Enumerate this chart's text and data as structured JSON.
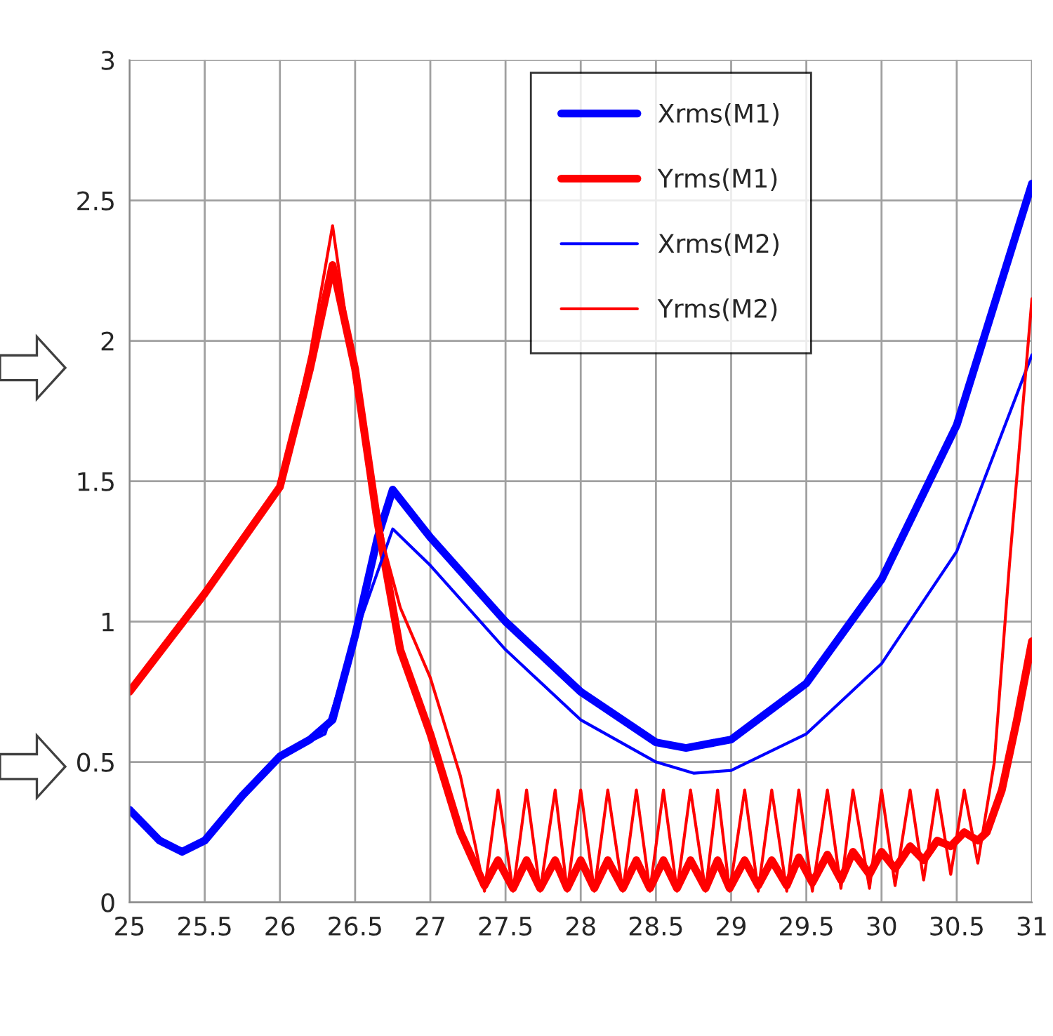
{
  "chart_data": {
    "type": "line",
    "xlim": [
      25,
      31
    ],
    "ylim": [
      0,
      3
    ],
    "xticks": [
      25,
      25.5,
      26,
      26.5,
      27,
      27.5,
      28,
      28.5,
      29,
      29.5,
      30,
      30.5,
      31
    ],
    "yticks": [
      0,
      0.5,
      1,
      1.5,
      2,
      2.5,
      3
    ],
    "grid": true,
    "legend": "top",
    "marker": "none",
    "line_style": "solid",
    "series": [
      {
        "name": "Xrms(M1)",
        "color": "#0000ff",
        "x": [
          25,
          25.2,
          25.35,
          25.5,
          25.75,
          26,
          26.2,
          26.35,
          26.5,
          26.65,
          26.75,
          27,
          27.5,
          28,
          28.5,
          28.7,
          29,
          29.5,
          30,
          30.5,
          31
        ],
        "values": [
          0.33,
          0.22,
          0.18,
          0.22,
          0.38,
          0.52,
          0.58,
          0.65,
          0.95,
          1.3,
          1.47,
          1.3,
          1.0,
          0.75,
          0.57,
          0.55,
          0.58,
          0.78,
          1.15,
          1.7,
          2.56
        ]
      },
      {
        "name": "Yrms(M1)",
        "color": "#ff0000",
        "x": [
          25,
          25.5,
          26,
          26.2,
          26.35,
          26.5,
          26.65,
          26.8,
          27,
          27.2,
          27.36,
          27.45,
          27.55,
          27.64,
          27.73,
          27.83,
          27.91,
          28.0,
          28.09,
          28.18,
          28.28,
          28.37,
          28.46,
          28.55,
          28.64,
          28.73,
          28.83,
          28.91,
          28.99,
          29.09,
          29.18,
          29.27,
          29.37,
          29.45,
          29.54,
          29.64,
          29.73,
          29.81,
          29.92,
          30.0,
          30.09,
          30.19,
          30.28,
          30.37,
          30.46,
          30.55,
          30.64,
          30.7,
          30.8,
          30.9,
          31
        ],
        "values": [
          0.75,
          1.1,
          1.48,
          1.9,
          2.27,
          1.9,
          1.35,
          0.9,
          0.6,
          0.25,
          0.06,
          0.15,
          0.05,
          0.15,
          0.05,
          0.15,
          0.05,
          0.15,
          0.05,
          0.15,
          0.05,
          0.15,
          0.05,
          0.15,
          0.05,
          0.15,
          0.05,
          0.15,
          0.05,
          0.15,
          0.06,
          0.15,
          0.06,
          0.16,
          0.07,
          0.17,
          0.08,
          0.18,
          0.1,
          0.18,
          0.12,
          0.2,
          0.15,
          0.22,
          0.2,
          0.25,
          0.22,
          0.25,
          0.4,
          0.65,
          0.93
        ]
      },
      {
        "name": "Xrms(M2)",
        "color": "#0000ff",
        "x": [
          25,
          25.2,
          25.35,
          25.5,
          25.75,
          26,
          26.3,
          26.5,
          26.75,
          27,
          27.5,
          28,
          28.5,
          28.75,
          29,
          29.5,
          30,
          30.5,
          31
        ],
        "values": [
          0.33,
          0.22,
          0.18,
          0.22,
          0.38,
          0.52,
          0.6,
          0.95,
          1.33,
          1.2,
          0.9,
          0.65,
          0.5,
          0.46,
          0.47,
          0.6,
          0.85,
          1.25,
          1.95
        ]
      },
      {
        "name": "Yrms(M2)",
        "color": "#ff0000",
        "x": [
          25,
          25.5,
          26,
          26.2,
          26.35,
          26.5,
          26.7,
          26.8,
          27,
          27.2,
          27.3,
          27.36,
          27.45,
          27.55,
          27.64,
          27.73,
          27.83,
          27.91,
          28.0,
          28.09,
          28.18,
          28.28,
          28.37,
          28.46,
          28.55,
          28.64,
          28.73,
          28.83,
          28.91,
          28.99,
          29.09,
          29.18,
          29.27,
          29.37,
          29.45,
          29.54,
          29.64,
          29.73,
          29.81,
          29.92,
          30.0,
          30.09,
          30.19,
          30.28,
          30.37,
          30.46,
          30.55,
          30.64,
          30.75,
          30.85,
          31
        ],
        "values": [
          0.75,
          1.1,
          1.48,
          1.95,
          2.41,
          1.85,
          1.25,
          1.05,
          0.8,
          0.45,
          0.2,
          0.04,
          0.4,
          0.04,
          0.4,
          0.04,
          0.4,
          0.04,
          0.4,
          0.04,
          0.4,
          0.04,
          0.4,
          0.04,
          0.4,
          0.04,
          0.4,
          0.04,
          0.4,
          0.04,
          0.4,
          0.04,
          0.4,
          0.04,
          0.4,
          0.04,
          0.4,
          0.05,
          0.4,
          0.05,
          0.4,
          0.06,
          0.4,
          0.08,
          0.4,
          0.1,
          0.4,
          0.14,
          0.5,
          1.2,
          2.15
        ]
      }
    ]
  }
}
